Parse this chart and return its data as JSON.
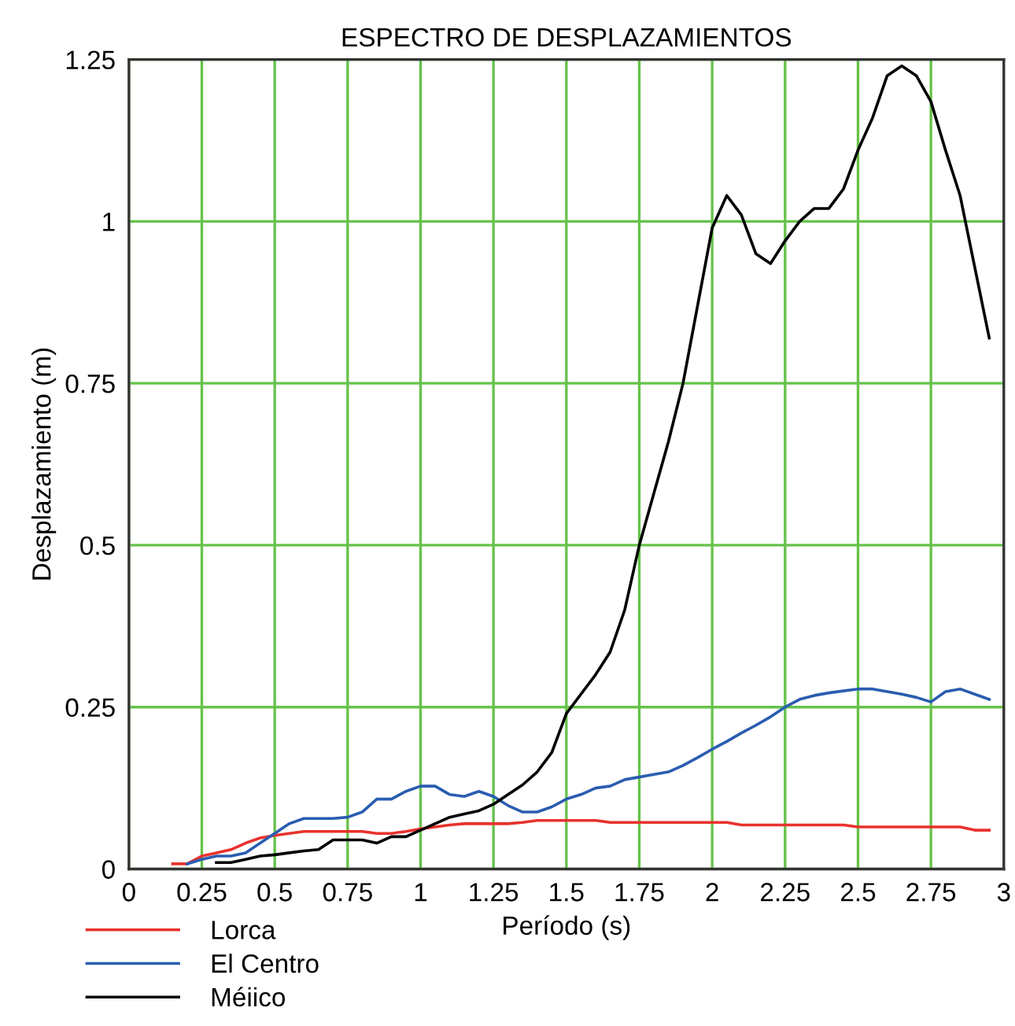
{
  "chart_data": {
    "type": "line",
    "title": "ESPECTRO DE DESPLAZAMIENTOS",
    "xlabel": "Período (s)",
    "ylabel": "Desplazamiento (m)",
    "xlim": [
      0,
      3
    ],
    "ylim": [
      0,
      1.25
    ],
    "xticks": [
      0,
      0.25,
      0.5,
      0.75,
      1,
      1.25,
      1.5,
      1.75,
      2,
      2.25,
      2.5,
      2.75,
      3
    ],
    "yticks": [
      0,
      0.25,
      0.5,
      0.75,
      1,
      1.25
    ],
    "grid": true,
    "legend": "bottom left",
    "line_style": "solid",
    "series": [
      {
        "name": "Lorca",
        "color": "#e8322e",
        "x": [
          0.15,
          0.2,
          0.25,
          0.3,
          0.35,
          0.4,
          0.45,
          0.5,
          0.55,
          0.6,
          0.65,
          0.7,
          0.75,
          0.8,
          0.85,
          0.9,
          0.95,
          1.0,
          1.05,
          1.1,
          1.15,
          1.2,
          1.25,
          1.3,
          1.35,
          1.4,
          1.45,
          1.5,
          1.55,
          1.6,
          1.65,
          1.7,
          1.75,
          1.8,
          1.85,
          1.9,
          1.95,
          2.0,
          2.05,
          2.1,
          2.15,
          2.2,
          2.25,
          2.3,
          2.35,
          2.4,
          2.45,
          2.5,
          2.55,
          2.6,
          2.65,
          2.7,
          2.75,
          2.8,
          2.85,
          2.9,
          2.95
        ],
        "values": [
          0.008,
          0.008,
          0.02,
          0.025,
          0.03,
          0.04,
          0.048,
          0.052,
          0.055,
          0.058,
          0.058,
          0.058,
          0.058,
          0.058,
          0.055,
          0.055,
          0.058,
          0.062,
          0.065,
          0.068,
          0.07,
          0.07,
          0.07,
          0.07,
          0.072,
          0.075,
          0.075,
          0.075,
          0.075,
          0.075,
          0.072,
          0.072,
          0.072,
          0.072,
          0.072,
          0.072,
          0.072,
          0.072,
          0.072,
          0.068,
          0.068,
          0.068,
          0.068,
          0.068,
          0.068,
          0.068,
          0.068,
          0.065,
          0.065,
          0.065,
          0.065,
          0.065,
          0.065,
          0.065,
          0.065,
          0.06,
          0.06
        ]
      },
      {
        "name": "El Centro",
        "color": "#2a5db0",
        "x": [
          0.2,
          0.25,
          0.3,
          0.35,
          0.4,
          0.45,
          0.5,
          0.55,
          0.6,
          0.65,
          0.7,
          0.75,
          0.8,
          0.85,
          0.9,
          0.95,
          1.0,
          1.05,
          1.1,
          1.15,
          1.2,
          1.25,
          1.3,
          1.35,
          1.4,
          1.45,
          1.5,
          1.55,
          1.6,
          1.65,
          1.7,
          1.75,
          1.8,
          1.85,
          1.9,
          1.95,
          2.0,
          2.05,
          2.1,
          2.15,
          2.2,
          2.25,
          2.3,
          2.35,
          2.4,
          2.45,
          2.5,
          2.55,
          2.6,
          2.65,
          2.7,
          2.75,
          2.8,
          2.85,
          2.9,
          2.95
        ],
        "values": [
          0.008,
          0.015,
          0.02,
          0.02,
          0.025,
          0.04,
          0.055,
          0.07,
          0.078,
          0.078,
          0.078,
          0.08,
          0.088,
          0.108,
          0.108,
          0.12,
          0.128,
          0.128,
          0.115,
          0.112,
          0.12,
          0.112,
          0.098,
          0.088,
          0.088,
          0.096,
          0.108,
          0.115,
          0.125,
          0.128,
          0.138,
          0.142,
          0.146,
          0.15,
          0.16,
          0.172,
          0.185,
          0.197,
          0.21,
          0.222,
          0.235,
          0.25,
          0.262,
          0.268,
          0.272,
          0.275,
          0.278,
          0.278,
          0.274,
          0.27,
          0.265,
          0.258,
          0.274,
          0.278,
          0.27,
          0.262
        ]
      },
      {
        "name": "Méiico",
        "color": "#000000",
        "x": [
          0.3,
          0.35,
          0.4,
          0.45,
          0.5,
          0.55,
          0.6,
          0.65,
          0.7,
          0.75,
          0.8,
          0.85,
          0.9,
          0.95,
          1.0,
          1.05,
          1.1,
          1.15,
          1.2,
          1.25,
          1.3,
          1.35,
          1.4,
          1.45,
          1.5,
          1.55,
          1.6,
          1.65,
          1.7,
          1.75,
          1.8,
          1.85,
          1.9,
          1.95,
          2.0,
          2.05,
          2.1,
          2.15,
          2.2,
          2.25,
          2.3,
          2.35,
          2.4,
          2.45,
          2.5,
          2.55,
          2.6,
          2.65,
          2.7,
          2.75,
          2.8,
          2.85,
          2.9,
          2.95
        ],
        "values": [
          0.01,
          0.01,
          0.015,
          0.02,
          0.022,
          0.025,
          0.028,
          0.03,
          0.045,
          0.045,
          0.045,
          0.04,
          0.05,
          0.05,
          0.06,
          0.07,
          0.08,
          0.085,
          0.09,
          0.1,
          0.115,
          0.13,
          0.15,
          0.18,
          0.24,
          0.27,
          0.3,
          0.335,
          0.4,
          0.5,
          0.58,
          0.66,
          0.75,
          0.87,
          0.99,
          1.04,
          1.01,
          0.95,
          0.935,
          0.97,
          1.0,
          1.02,
          1.02,
          1.05,
          1.11,
          1.16,
          1.225,
          1.24,
          1.225,
          1.185,
          1.11,
          1.04,
          0.93,
          0.82
        ]
      }
    ]
  }
}
